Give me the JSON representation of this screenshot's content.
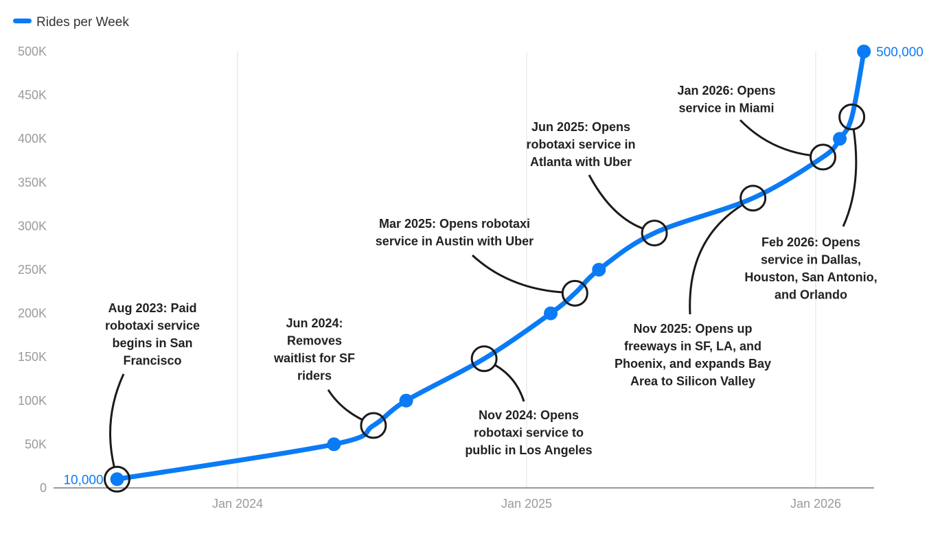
{
  "chart_data": {
    "type": "line",
    "title": "",
    "xlabel": "",
    "ylabel": "",
    "legend": {
      "position": "top-left",
      "entries": [
        "Rides per Week"
      ]
    },
    "series": [
      {
        "name": "Rides per Week",
        "color": "#0b7bf5",
        "points": [
          {
            "date": "2023-08",
            "value": 10000
          },
          {
            "date": "2024-05",
            "value": 50000
          },
          {
            "date": "2024-08",
            "value": 100000
          },
          {
            "date": "2025-02",
            "value": 200000
          },
          {
            "date": "2025-04",
            "value": 250000
          },
          {
            "date": "2026-02",
            "value": 400000
          },
          {
            "date": "2026-03",
            "value": 500000
          }
        ]
      }
    ],
    "data_labels": [
      {
        "date": "2023-08",
        "value": 10000,
        "text": "10,000",
        "side": "left"
      },
      {
        "date": "2026-03",
        "value": 500000,
        "text": "500,000",
        "side": "right"
      }
    ],
    "annotations": [
      {
        "year_decimal": 2023.583,
        "value": 10000,
        "lines": [
          "Aug 2023: Paid",
          "robotaxi service",
          "begins in San",
          "Francisco"
        ]
      },
      {
        "year_decimal": 2024.47,
        "value": 71500,
        "lines": [
          "Jun 2024:",
          "Removes",
          "waitlist for SF",
          "riders"
        ]
      },
      {
        "year_decimal": 2024.853,
        "value": 148000,
        "lines": [
          "Nov 2024: Opens",
          "robotaxi service to",
          "public in Los Angeles"
        ]
      },
      {
        "year_decimal": 2025.167,
        "value": 223000,
        "lines": [
          "Mar 2025: Opens robotaxi",
          "service in Austin with Uber"
        ]
      },
      {
        "year_decimal": 2025.442,
        "value": 292000,
        "lines": [
          "Jun 2025: Opens",
          "robotaxi service in",
          "Atlanta with Uber"
        ]
      },
      {
        "year_decimal": 2025.783,
        "value": 332000,
        "lines": [
          "Nov 2025: Opens up",
          "freeways in SF, LA, and",
          "Phoenix, and expands Bay",
          "Area to Silicon Valley"
        ]
      },
      {
        "year_decimal": 2026.025,
        "value": 379000,
        "lines": [
          "Jan 2026: Opens",
          "service in Miami"
        ]
      },
      {
        "year_decimal": 2026.125,
        "value": 425000,
        "lines": [
          "Feb 2026: Opens",
          "service in Dallas,",
          "Houston, San Antonio,",
          "and Orlando"
        ]
      }
    ],
    "y_axis": {
      "min": 0,
      "max": 500000,
      "ticks": [
        0,
        50000,
        100000,
        150000,
        200000,
        250000,
        300000,
        350000,
        400000,
        450000,
        500000
      ],
      "tick_labels": [
        "0",
        "50K",
        "100K",
        "150K",
        "200K",
        "250K",
        "300K",
        "350K",
        "400K",
        "450K",
        "500K"
      ]
    },
    "x_axis": {
      "range": [
        "2023-07",
        "2026-04"
      ],
      "ticks": [
        2024,
        2025,
        2026
      ],
      "tick_labels": [
        "Jan 2024",
        "Jan 2025",
        "Jan 2026"
      ]
    },
    "grid": {
      "vertical": true,
      "horizontal": false
    }
  }
}
